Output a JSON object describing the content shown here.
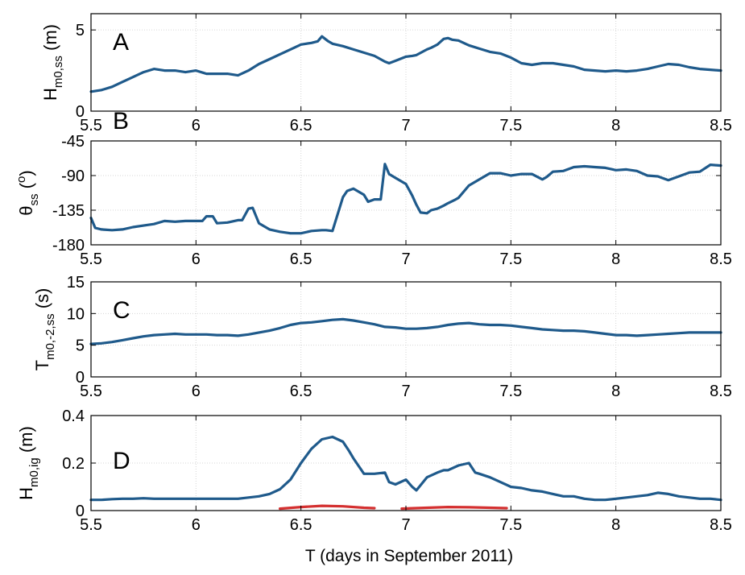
{
  "figure": {
    "xlabel": "T (days in September 2011)"
  },
  "chart_data": [
    {
      "type": "line",
      "panel": "A",
      "ylabel_main": "H",
      "ylabel_sub": "m0,ss",
      "ylabel_unit": " (m)",
      "xlim": [
        5.5,
        8.5
      ],
      "ylim": [
        0,
        6
      ],
      "xticks": [
        5.5,
        6,
        6.5,
        7,
        7.5,
        8,
        8.5
      ],
      "xtick_labels": [
        "5.5",
        "6",
        "6.5",
        "7",
        "7.5",
        "8",
        "8.5"
      ],
      "yticks": [
        0,
        5
      ],
      "ytick_labels": [
        "0",
        "5"
      ],
      "grid": true,
      "series": [
        {
          "name": "Hm0,ss",
          "color": "#1f5a8b",
          "x": [
            5.5,
            5.55,
            5.6,
            5.65,
            5.7,
            5.75,
            5.8,
            5.85,
            5.9,
            5.95,
            6.0,
            6.05,
            6.1,
            6.15,
            6.2,
            6.25,
            6.3,
            6.35,
            6.4,
            6.45,
            6.5,
            6.55,
            6.58,
            6.6,
            6.63,
            6.65,
            6.7,
            6.75,
            6.8,
            6.85,
            6.9,
            6.92,
            6.95,
            7.0,
            7.03,
            7.05,
            7.1,
            7.12,
            7.15,
            7.18,
            7.2,
            7.22,
            7.25,
            7.3,
            7.35,
            7.4,
            7.45,
            7.5,
            7.55,
            7.6,
            7.65,
            7.7,
            7.75,
            7.8,
            7.85,
            7.9,
            7.95,
            8.0,
            8.05,
            8.1,
            8.15,
            8.2,
            8.25,
            8.3,
            8.35,
            8.4,
            8.45,
            8.5
          ],
          "y": [
            1.2,
            1.3,
            1.5,
            1.8,
            2.1,
            2.4,
            2.6,
            2.5,
            2.5,
            2.4,
            2.5,
            2.3,
            2.3,
            2.3,
            2.2,
            2.5,
            2.9,
            3.2,
            3.5,
            3.8,
            4.1,
            4.2,
            4.3,
            4.6,
            4.3,
            4.15,
            4.0,
            3.8,
            3.6,
            3.4,
            3.05,
            2.95,
            3.1,
            3.35,
            3.4,
            3.45,
            3.8,
            3.9,
            4.1,
            4.45,
            4.5,
            4.4,
            4.35,
            4.05,
            3.85,
            3.65,
            3.55,
            3.3,
            2.95,
            2.85,
            2.95,
            2.95,
            2.85,
            2.75,
            2.55,
            2.5,
            2.45,
            2.5,
            2.45,
            2.5,
            2.6,
            2.75,
            2.9,
            2.85,
            2.7,
            2.6,
            2.55,
            2.5
          ]
        }
      ]
    },
    {
      "type": "line",
      "panel": "B",
      "ylabel_main": "θ",
      "ylabel_sub": "ss",
      "ylabel_unit": " (",
      "ylabel_sup": "o",
      "ylabel_close": ")",
      "xlim": [
        5.5,
        8.5
      ],
      "ylim": [
        -180,
        -45
      ],
      "xticks": [
        5.5,
        6,
        6.5,
        7,
        7.5,
        8,
        8.5
      ],
      "xtick_labels": [
        "5.5",
        "6",
        "6.5",
        "7",
        "7.5",
        "8",
        "8.5"
      ],
      "yticks": [
        -180,
        -135,
        -90,
        -45
      ],
      "ytick_labels": [
        "-180",
        "-135",
        "-90",
        "-45"
      ],
      "grid": true,
      "series": [
        {
          "name": "theta_ss",
          "color": "#1f5a8b",
          "x": [
            5.5,
            5.52,
            5.55,
            5.6,
            5.65,
            5.7,
            5.75,
            5.8,
            5.85,
            5.9,
            5.95,
            6.0,
            6.03,
            6.05,
            6.08,
            6.1,
            6.15,
            6.2,
            6.22,
            6.25,
            6.27,
            6.3,
            6.35,
            6.4,
            6.45,
            6.5,
            6.55,
            6.6,
            6.62,
            6.65,
            6.7,
            6.72,
            6.75,
            6.8,
            6.82,
            6.85,
            6.88,
            6.9,
            6.92,
            6.95,
            7.0,
            7.03,
            7.05,
            7.07,
            7.1,
            7.12,
            7.15,
            7.18,
            7.2,
            7.23,
            7.25,
            7.3,
            7.35,
            7.4,
            7.45,
            7.5,
            7.55,
            7.6,
            7.65,
            7.67,
            7.7,
            7.75,
            7.8,
            7.85,
            7.9,
            7.95,
            8.0,
            8.05,
            8.1,
            8.15,
            8.2,
            8.25,
            8.3,
            8.35,
            8.4,
            8.45,
            8.5
          ],
          "y": [
            -145,
            -158,
            -160,
            -161,
            -160,
            -157,
            -155,
            -153,
            -149,
            -150,
            -149,
            -149,
            -149,
            -143,
            -143,
            -152,
            -151,
            -148,
            -148,
            -133,
            -132,
            -152,
            -160,
            -163,
            -165,
            -165,
            -162,
            -161,
            -161,
            -162,
            -118,
            -110,
            -107,
            -115,
            -124,
            -121,
            -121,
            -75,
            -88,
            -93,
            -101,
            -116,
            -128,
            -138,
            -139,
            -135,
            -133,
            -129,
            -126,
            -122,
            -119,
            -103,
            -95,
            -87,
            -87,
            -90,
            -88,
            -88,
            -95,
            -92,
            -85,
            -84,
            -79,
            -78,
            -79,
            -80,
            -83,
            -82,
            -84,
            -90,
            -91,
            -96,
            -91,
            -86,
            -85,
            -76,
            -77
          ]
        }
      ]
    },
    {
      "type": "line",
      "panel": "C",
      "ylabel_main": "T",
      "ylabel_sub": "m0,-2,ss",
      "ylabel_unit": " (s)",
      "xlim": [
        5.5,
        8.5
      ],
      "ylim": [
        0,
        15
      ],
      "xticks": [
        5.5,
        6,
        6.5,
        7,
        7.5,
        8,
        8.5
      ],
      "xtick_labels": [
        "5.5",
        "6",
        "6.5",
        "7",
        "7.5",
        "8",
        "8.5"
      ],
      "yticks": [
        0,
        5,
        10,
        15
      ],
      "ytick_labels": [
        "0",
        "5",
        "10",
        "15"
      ],
      "grid": true,
      "series": [
        {
          "name": "Tm0,-2,ss",
          "color": "#1f5a8b",
          "x": [
            5.5,
            5.55,
            5.6,
            5.65,
            5.7,
            5.75,
            5.8,
            5.85,
            5.9,
            5.95,
            6.0,
            6.05,
            6.1,
            6.15,
            6.2,
            6.25,
            6.3,
            6.35,
            6.4,
            6.45,
            6.5,
            6.55,
            6.6,
            6.65,
            6.7,
            6.75,
            6.8,
            6.85,
            6.9,
            6.95,
            7.0,
            7.05,
            7.1,
            7.15,
            7.2,
            7.25,
            7.3,
            7.35,
            7.4,
            7.45,
            7.5,
            7.55,
            7.6,
            7.65,
            7.7,
            7.75,
            7.8,
            7.85,
            7.9,
            7.95,
            8.0,
            8.05,
            8.1,
            8.15,
            8.2,
            8.25,
            8.3,
            8.35,
            8.4,
            8.45,
            8.5
          ],
          "y": [
            5.2,
            5.3,
            5.5,
            5.8,
            6.1,
            6.4,
            6.6,
            6.7,
            6.8,
            6.7,
            6.7,
            6.7,
            6.6,
            6.6,
            6.5,
            6.7,
            7.0,
            7.3,
            7.7,
            8.2,
            8.5,
            8.6,
            8.8,
            9.0,
            9.1,
            8.9,
            8.6,
            8.3,
            7.9,
            7.8,
            7.6,
            7.6,
            7.7,
            7.9,
            8.2,
            8.4,
            8.5,
            8.3,
            8.2,
            8.2,
            8.1,
            7.9,
            7.7,
            7.5,
            7.4,
            7.3,
            7.3,
            7.2,
            7.0,
            6.8,
            6.6,
            6.6,
            6.5,
            6.6,
            6.7,
            6.8,
            6.9,
            7.0,
            7.0,
            7.0,
            7.0
          ]
        }
      ]
    },
    {
      "type": "line",
      "panel": "D",
      "ylabel_main": "H",
      "ylabel_sub": "m0,ig",
      "ylabel_unit": " (m)",
      "xlim": [
        5.5,
        8.5
      ],
      "ylim": [
        0,
        0.4
      ],
      "xticks": [
        5.5,
        6,
        6.5,
        7,
        7.5,
        8,
        8.5
      ],
      "xtick_labels": [
        "5.5",
        "6",
        "6.5",
        "7",
        "7.5",
        "8",
        "8.5"
      ],
      "yticks": [
        0,
        0.2,
        0.4
      ],
      "ytick_labels": [
        "0",
        "0.2",
        "0.4"
      ],
      "grid": true,
      "series": [
        {
          "name": "Hm0,ig",
          "color": "#1f5a8b",
          "x": [
            5.5,
            5.55,
            5.6,
            5.65,
            5.7,
            5.75,
            5.8,
            5.85,
            5.9,
            5.95,
            6.0,
            6.05,
            6.1,
            6.15,
            6.2,
            6.25,
            6.3,
            6.35,
            6.4,
            6.45,
            6.5,
            6.55,
            6.6,
            6.65,
            6.7,
            6.73,
            6.75,
            6.8,
            6.83,
            6.85,
            6.9,
            6.92,
            6.95,
            7.0,
            7.03,
            7.05,
            7.1,
            7.15,
            7.18,
            7.2,
            7.25,
            7.3,
            7.33,
            7.35,
            7.4,
            7.45,
            7.5,
            7.55,
            7.6,
            7.65,
            7.7,
            7.75,
            7.8,
            7.85,
            7.9,
            7.95,
            8.0,
            8.05,
            8.1,
            8.15,
            8.2,
            8.25,
            8.3,
            8.35,
            8.4,
            8.45,
            8.5
          ],
          "y": [
            0.045,
            0.045,
            0.048,
            0.05,
            0.05,
            0.052,
            0.05,
            0.05,
            0.05,
            0.05,
            0.05,
            0.05,
            0.05,
            0.05,
            0.05,
            0.055,
            0.06,
            0.07,
            0.09,
            0.13,
            0.2,
            0.26,
            0.3,
            0.31,
            0.29,
            0.25,
            0.22,
            0.155,
            0.155,
            0.155,
            0.16,
            0.12,
            0.11,
            0.13,
            0.1,
            0.085,
            0.14,
            0.16,
            0.17,
            0.17,
            0.19,
            0.2,
            0.16,
            0.155,
            0.14,
            0.12,
            0.1,
            0.095,
            0.085,
            0.08,
            0.07,
            0.06,
            0.06,
            0.05,
            0.045,
            0.045,
            0.05,
            0.055,
            0.06,
            0.065,
            0.075,
            0.07,
            0.06,
            0.055,
            0.05,
            0.05,
            0.045
          ]
        },
        {
          "name": "Hm0,ig (red)",
          "color": "#d43030",
          "x": [
            6.4,
            6.5,
            6.6,
            6.7,
            6.8,
            6.85
          ],
          "y": [
            0.008,
            0.015,
            0.02,
            0.018,
            0.012,
            0.01
          ]
        },
        {
          "name": "Hm0,ig (red, second)",
          "color": "#d43030",
          "x": [
            6.98,
            7.1,
            7.2,
            7.3,
            7.4,
            7.48
          ],
          "y": [
            0.008,
            0.012,
            0.015,
            0.014,
            0.012,
            0.01
          ]
        }
      ]
    }
  ]
}
